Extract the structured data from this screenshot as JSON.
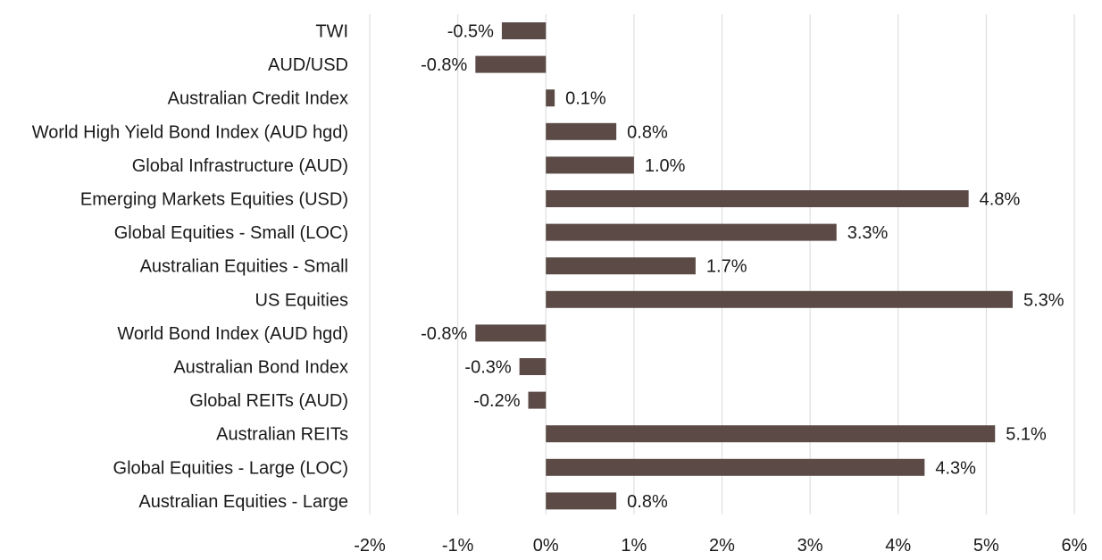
{
  "chart_data": {
    "type": "bar",
    "orientation": "horizontal",
    "title": "",
    "xlabel": "",
    "ylabel": "",
    "categories": [
      "TWI",
      "AUD/USD",
      "Australian Credit Index",
      "World High Yield Bond Index (AUD hgd)",
      "Global Infrastructure (AUD)",
      "Emerging Markets Equities (USD)",
      "Global Equities - Small (LOC)",
      "Australian Equities - Small",
      "US Equities",
      "World Bond Index (AUD hgd)",
      "Australian Bond Index",
      "Global REITs (AUD)",
      "Australian REITs",
      "Global Equities - Large (LOC)",
      "Australian Equities - Large"
    ],
    "values": [
      -0.5,
      -0.8,
      0.1,
      0.8,
      1.0,
      4.8,
      3.3,
      1.7,
      5.3,
      -0.8,
      -0.3,
      -0.2,
      5.1,
      4.3,
      0.8
    ],
    "value_labels": [
      "-0.5%",
      "-0.8%",
      "0.1%",
      "0.8%",
      "1.0%",
      "4.8%",
      "3.3%",
      "1.7%",
      "5.3%",
      "-0.8%",
      "-0.3%",
      "-0.2%",
      "5.1%",
      "4.3%",
      "0.8%"
    ],
    "xlim": [
      -2,
      6
    ],
    "x_ticks": [
      -2,
      -1,
      0,
      1,
      2,
      3,
      4,
      5,
      6
    ],
    "x_tick_labels": [
      "-2%",
      "-1%",
      "0%",
      "1%",
      "2%",
      "3%",
      "4%",
      "5%",
      "6%"
    ],
    "grid": true,
    "legend": "none",
    "bar_color": "#5b4a45",
    "grid_color": "#d9d9d9"
  }
}
